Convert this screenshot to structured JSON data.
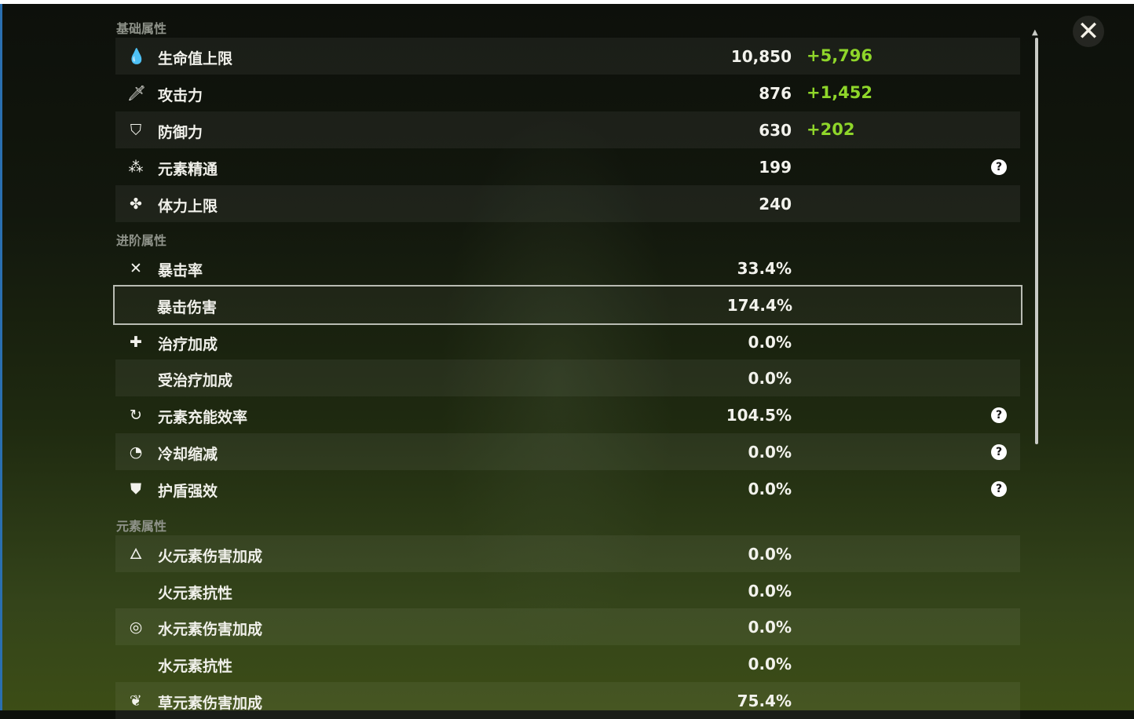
{
  "sections": {
    "basic": "基础属性",
    "advanced": "进阶属性",
    "elemental": "元素属性"
  },
  "close_icon": "close-x-icon",
  "help_label": "?",
  "colors": {
    "bonus": "#8fd62a",
    "selected_outline": "#b9bcb3"
  },
  "rows": [
    {
      "label": "生命值上限",
      "value": "10,850",
      "bonus": "+5,796",
      "icon": "hp-drop-icon",
      "glyph": "💧",
      "section": "basic"
    },
    {
      "label": "攻击力",
      "value": "876",
      "bonus": "+1,452",
      "icon": "sword-icon",
      "glyph": "🗡",
      "section": "basic"
    },
    {
      "label": "防御力",
      "value": "630",
      "bonus": "+202",
      "icon": "shield-icon",
      "glyph": "⛉",
      "section": "basic"
    },
    {
      "label": "元素精通",
      "value": "199",
      "icon": "elemental-mastery-icon",
      "glyph": "⁂",
      "help": true,
      "section": "basic"
    },
    {
      "label": "体力上限",
      "value": "240",
      "icon": "stamina-icon",
      "glyph": "✤",
      "section": "basic"
    },
    {
      "label": "暴击率",
      "value": "33.4%",
      "icon": "crit-rate-icon",
      "glyph": "✕",
      "section": "advanced"
    },
    {
      "label": "暴击伤害",
      "value": "174.4%",
      "icon": "crit-dmg-icon",
      "glyph": "",
      "selected": true,
      "section": "advanced"
    },
    {
      "label": "治疗加成",
      "value": "0.0%",
      "icon": "healing-cross-icon",
      "glyph": "✚",
      "section": "advanced"
    },
    {
      "label": "受治疗加成",
      "value": "0.0%",
      "section": "advanced"
    },
    {
      "label": "元素充能效率",
      "value": "104.5%",
      "icon": "energy-recharge-icon",
      "glyph": "↻",
      "help": true,
      "section": "advanced"
    },
    {
      "label": "冷却缩减",
      "value": "0.0%",
      "icon": "cooldown-icon",
      "glyph": "◔",
      "help": true,
      "section": "advanced"
    },
    {
      "label": "护盾强效",
      "value": "0.0%",
      "icon": "shield-strength-icon",
      "glyph": "⛊",
      "help": true,
      "section": "advanced"
    },
    {
      "label": "火元素伤害加成",
      "value": "0.0%",
      "icon": "pyro-icon",
      "glyph": "🜂",
      "section": "elemental"
    },
    {
      "label": "火元素抗性",
      "value": "0.0%",
      "section": "elemental"
    },
    {
      "label": "水元素伤害加成",
      "value": "0.0%",
      "icon": "hydro-icon",
      "glyph": "◎",
      "section": "elemental"
    },
    {
      "label": "水元素抗性",
      "value": "0.0%",
      "section": "elemental"
    },
    {
      "label": "草元素伤害加成",
      "value": "75.4%",
      "icon": "dendro-icon",
      "glyph": "❦",
      "section": "elemental"
    }
  ]
}
